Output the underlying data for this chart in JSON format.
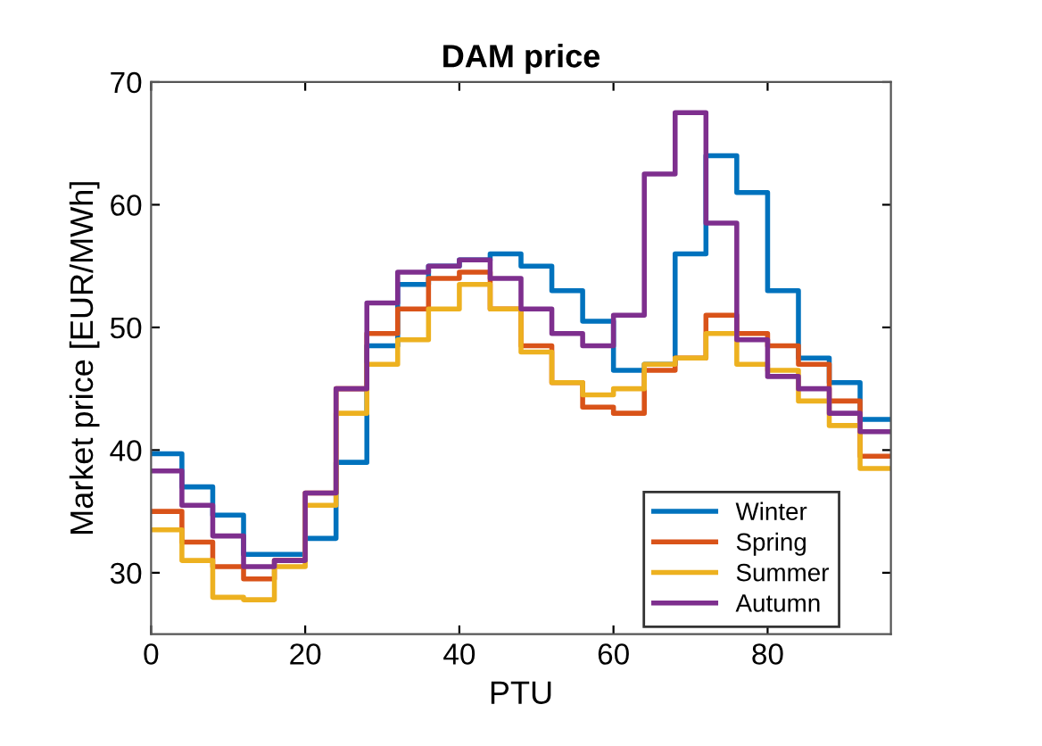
{
  "chart_data": {
    "type": "step",
    "title": "DAM price",
    "xlabel": "PTU",
    "ylabel": "Market price [EUR/MWh]",
    "x": [
      0,
      4,
      8,
      12,
      16,
      20,
      24,
      28,
      32,
      36,
      40,
      44,
      48,
      52,
      56,
      60,
      64,
      68,
      72,
      76,
      80,
      84,
      88,
      92,
      96
    ],
    "series": [
      {
        "name": "Winter",
        "color": "#0072bd",
        "values": [
          39.7,
          37,
          34.7,
          31.5,
          31.5,
          32.8,
          39,
          48.5,
          53.5,
          55,
          55.5,
          56,
          55,
          53,
          50.5,
          46.5,
          47,
          56,
          64,
          61,
          53,
          47.5,
          45.5,
          42.5,
          42.5
        ]
      },
      {
        "name": "Spring",
        "color": "#d95319",
        "values": [
          35,
          32.5,
          30.5,
          29.5,
          31,
          36.5,
          45,
          49.5,
          51.5,
          54,
          54.5,
          51.5,
          48.5,
          45.5,
          43.5,
          43,
          46.5,
          47.5,
          51,
          49.5,
          48.5,
          47,
          44,
          39.5,
          39.5
        ]
      },
      {
        "name": "Summer",
        "color": "#edb120",
        "values": [
          33.5,
          31,
          28,
          27.8,
          30.5,
          35.5,
          43,
          47,
          49,
          51.5,
          53.5,
          51.5,
          48,
          45.5,
          44.5,
          45,
          47,
          47.5,
          49.5,
          47,
          46.5,
          44,
          42,
          38.5,
          38.5
        ]
      },
      {
        "name": "Autumn",
        "color": "#7e2f8e",
        "values": [
          38.3,
          35.5,
          33,
          30.5,
          31,
          36.5,
          45,
          52,
          54.5,
          55,
          55.5,
          54,
          51.5,
          49.5,
          48.5,
          51,
          62.5,
          67.5,
          58.5,
          49,
          46,
          45,
          43,
          41.5,
          41.5
        ]
      }
    ],
    "xlim": [
      0,
      96
    ],
    "ylim": [
      25,
      70
    ],
    "xticks": [
      0,
      20,
      40,
      60,
      80
    ],
    "yticks": [
      30,
      40,
      50,
      60,
      70
    ],
    "grid": false,
    "legend": "bottom right",
    "line_style": "solid"
  }
}
